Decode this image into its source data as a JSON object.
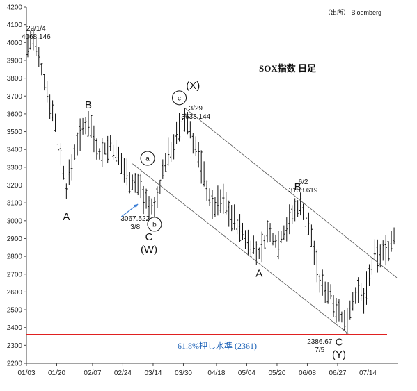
{
  "chart_data": {
    "type": "ohlc",
    "title": "SOX指数 日足",
    "source": "（出所）  Bloomberg",
    "xlabel": "",
    "ylabel": "",
    "ylim": [
      2200,
      4200
    ],
    "y_ticks": [
      2200,
      2300,
      2400,
      2500,
      2600,
      2700,
      2800,
      2900,
      3000,
      3100,
      3200,
      3300,
      3400,
      3500,
      3600,
      3700,
      3800,
      3900,
      4000,
      4100,
      4200
    ],
    "x_tick_labels": [
      {
        "index": 0,
        "label": "01/03"
      },
      {
        "index": 11,
        "label": "01/20"
      },
      {
        "index": 24,
        "label": "02/07"
      },
      {
        "index": 35,
        "label": "02/24"
      },
      {
        "index": 46,
        "label": "03/14"
      },
      {
        "index": 57,
        "label": "03/30"
      },
      {
        "index": 69,
        "label": "04/18"
      },
      {
        "index": 80,
        "label": "05/04"
      },
      {
        "index": 91,
        "label": "05/20"
      },
      {
        "index": 102,
        "label": "06/08"
      },
      {
        "index": 113,
        "label": "06/27"
      },
      {
        "index": 124,
        "label": "07/14"
      }
    ],
    "x_count": 135,
    "key_points": [
      {
        "x": 1,
        "y": 4068.146
      },
      {
        "x": 43,
        "y": 3067.522
      },
      {
        "x": 57,
        "y": 3633.144
      },
      {
        "x": 99,
        "y": 3158.619
      },
      {
        "x": 115,
        "y": 2386.67
      }
    ],
    "reference_line": {
      "value": 2361,
      "label": "61.8%押し水準 (2361)",
      "color": "#e02020"
    },
    "channels": [
      {
        "from": {
          "x": 57,
          "y": 3633
        },
        "to": {
          "x": 134,
          "y": 2680
        }
      },
      {
        "from": {
          "x": 38,
          "y": 3320
        },
        "to": {
          "x": 116,
          "y": 2370
        }
      }
    ],
    "annotations": [
      {
        "x": 3,
        "y": 4068,
        "lines": [
          "22/1/4",
          "4068.146"
        ]
      },
      {
        "x": 14,
        "y": 3003,
        "lines": [
          "A"
        ]
      },
      {
        "x": 22,
        "y": 3630,
        "lines": [
          "B"
        ]
      },
      {
        "x": 39,
        "y": 3000,
        "lines": [
          "3067.522",
          "3/8"
        ]
      },
      {
        "x": 44,
        "y": 2890,
        "lines": [
          "C",
          "(W)"
        ]
      },
      {
        "x": 60,
        "y": 3740,
        "lines": [
          "(X)"
        ]
      },
      {
        "x": 61,
        "y": 3620,
        "lines": [
          "3/29",
          "3633.144"
        ]
      },
      {
        "x": 84,
        "y": 2685,
        "lines": [
          "A"
        ]
      },
      {
        "x": 98,
        "y": 3170,
        "lines": [
          "B"
        ]
      },
      {
        "x": 100,
        "y": 3205,
        "lines": [
          "6/2",
          "3158.619"
        ]
      },
      {
        "x": 106,
        "y": 2310,
        "lines": [
          "2386.67",
          "7/5"
        ]
      },
      {
        "x": 113,
        "y": 2300,
        "lines": [
          "C",
          "(Y)"
        ]
      }
    ],
    "circled_labels": [
      {
        "x": 43.5,
        "y": 3350,
        "label": "a"
      },
      {
        "x": 46,
        "y": 2980,
        "label": "b"
      },
      {
        "x": 55,
        "y": 3690,
        "label": "c"
      }
    ],
    "arrow": {
      "from": {
        "x": 34,
        "y": 3023
      },
      "to": {
        "x": 40,
        "y": 3093
      }
    }
  }
}
